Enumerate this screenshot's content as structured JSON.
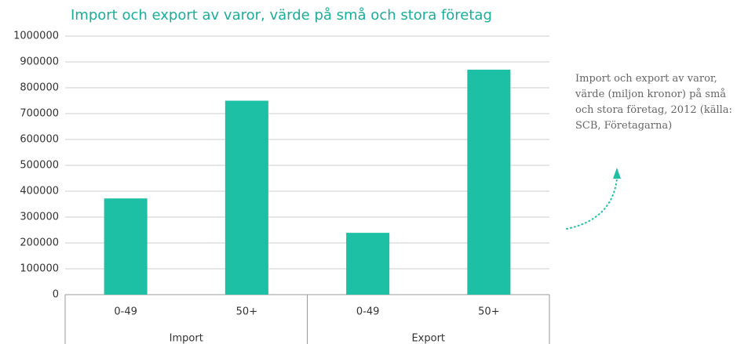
{
  "chart_data": {
    "type": "bar",
    "title": "Import och export av varor, värde på små och stora företag",
    "categories": [
      "0-49",
      "50+",
      "0-49",
      "50+"
    ],
    "groups": [
      "Import",
      "Export"
    ],
    "values": [
      372000,
      750000,
      239000,
      870000
    ],
    "color": "#1dbfa5",
    "ylim": [
      0,
      1000000
    ],
    "yticks": [
      0,
      100000,
      200000,
      300000,
      400000,
      500000,
      600000,
      700000,
      800000,
      900000,
      1000000
    ],
    "grid": true,
    "annotation": "Import och export av varor, värde (miljon kronor) på små och stora företag, 2012 (källa: SCB, Företagarna)"
  }
}
